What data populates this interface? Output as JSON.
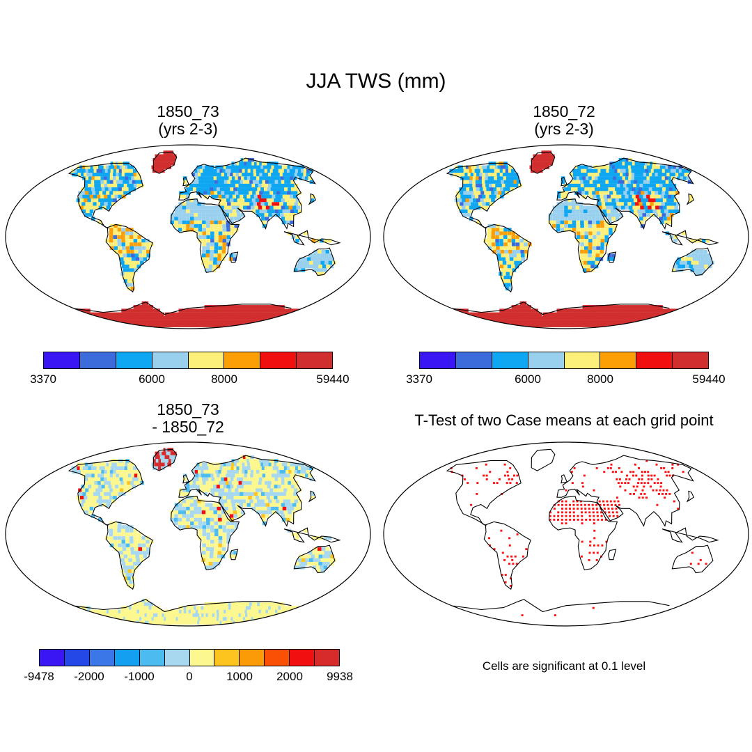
{
  "title": "JJA TWS (mm)",
  "panels": [
    {
      "title_line1": "1850_73",
      "title_line2": "(yrs 2-3)"
    },
    {
      "title_line1": "1850_72",
      "title_line2": "(yrs 2-3)"
    },
    {
      "title_line1": "1850_73",
      "title_line2": "- 1850_72"
    },
    {
      "title_line1": "T-Test of two Case means at each grid point"
    }
  ],
  "note": "Cells are significant at 0.1 level",
  "colorbars": {
    "abs": {
      "colors": [
        "#3b16f5",
        "#3c6bdc",
        "#0fa6f2",
        "#98d0ee",
        "#fdf07a",
        "#fa9f05",
        "#f01010",
        "#d12f2f"
      ],
      "labels": [
        {
          "text": "3370",
          "pos": 0
        },
        {
          "text": "6000",
          "pos": 3
        },
        {
          "text": "8000",
          "pos": 5
        },
        {
          "text": "59440",
          "pos": 8
        }
      ]
    },
    "diff": {
      "colors": [
        "#3b16f5",
        "#2447e8",
        "#3b77e6",
        "#14a0f0",
        "#4cbcf0",
        "#a7d8ef",
        "#fdf790",
        "#fdc420",
        "#fb9b08",
        "#f95005",
        "#f10f0f",
        "#d72b2b"
      ],
      "labels": [
        {
          "text": "-9478",
          "pos": 0
        },
        {
          "text": "-2000",
          "pos": 2
        },
        {
          "text": "-1000",
          "pos": 4
        },
        {
          "text": "0",
          "pos": 6
        },
        {
          "text": "1000",
          "pos": 8
        },
        {
          "text": "2000",
          "pos": 10
        },
        {
          "text": "9938",
          "pos": 12
        }
      ]
    }
  }
}
